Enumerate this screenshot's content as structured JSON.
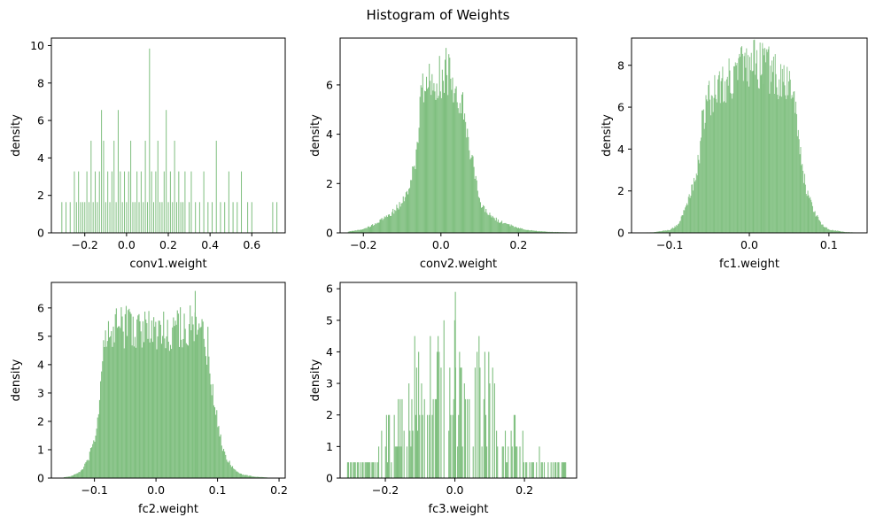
{
  "figure": {
    "title": "Histogram of Weights"
  },
  "colors": {
    "bar": "#7fbf7f",
    "axis": "#000000",
    "background": "#ffffff"
  },
  "chart_data": [
    {
      "type": "bar",
      "panel": "conv1.weight",
      "xlabel": "conv1.weight",
      "ylabel": "density",
      "xlim": [
        -0.36,
        0.76
      ],
      "ylim": [
        0,
        10.4
      ],
      "xticks": [
        -0.2,
        0.0,
        0.2,
        0.4,
        0.6
      ],
      "xtick_labels": [
        "−0.2",
        "0.0",
        "0.2",
        "0.4",
        "0.6"
      ],
      "yticks": [
        0,
        2,
        4,
        6,
        8,
        10
      ],
      "ytick_labels": [
        "0",
        "2",
        "4",
        "6",
        "8",
        "10"
      ],
      "bins": [
        [
          -0.31,
          1.64
        ],
        [
          -0.29,
          1.64
        ],
        [
          -0.27,
          1.64
        ],
        [
          -0.25,
          3.28
        ],
        [
          -0.24,
          1.64
        ],
        [
          -0.23,
          3.28
        ],
        [
          -0.22,
          1.64
        ],
        [
          -0.21,
          1.64
        ],
        [
          -0.2,
          1.64
        ],
        [
          -0.19,
          3.28
        ],
        [
          -0.18,
          1.64
        ],
        [
          -0.17,
          4.92
        ],
        [
          -0.16,
          1.64
        ],
        [
          -0.15,
          3.28
        ],
        [
          -0.14,
          1.64
        ],
        [
          -0.13,
          3.28
        ],
        [
          -0.12,
          6.56
        ],
        [
          -0.11,
          4.92
        ],
        [
          -0.1,
          1.64
        ],
        [
          -0.09,
          3.28
        ],
        [
          -0.08,
          1.64
        ],
        [
          -0.07,
          3.28
        ],
        [
          -0.06,
          4.92
        ],
        [
          -0.05,
          1.64
        ],
        [
          -0.04,
          6.56
        ],
        [
          -0.03,
          3.28
        ],
        [
          -0.02,
          1.64
        ],
        [
          -0.01,
          3.28
        ],
        [
          0.0,
          1.64
        ],
        [
          0.01,
          3.28
        ],
        [
          0.02,
          4.92
        ],
        [
          0.03,
          1.64
        ],
        [
          0.04,
          1.64
        ],
        [
          0.05,
          3.28
        ],
        [
          0.06,
          1.64
        ],
        [
          0.07,
          3.28
        ],
        [
          0.08,
          1.64
        ],
        [
          0.09,
          4.92
        ],
        [
          0.1,
          1.64
        ],
        [
          0.11,
          9.84
        ],
        [
          0.12,
          3.28
        ],
        [
          0.13,
          1.64
        ],
        [
          0.14,
          3.28
        ],
        [
          0.15,
          4.92
        ],
        [
          0.16,
          1.64
        ],
        [
          0.17,
          1.64
        ],
        [
          0.18,
          3.28
        ],
        [
          0.19,
          6.56
        ],
        [
          0.2,
          1.64
        ],
        [
          0.21,
          3.28
        ],
        [
          0.22,
          1.64
        ],
        [
          0.23,
          4.92
        ],
        [
          0.24,
          1.64
        ],
        [
          0.25,
          3.28
        ],
        [
          0.26,
          1.64
        ],
        [
          0.27,
          1.64
        ],
        [
          0.28,
          3.28
        ],
        [
          0.3,
          1.64
        ],
        [
          0.31,
          3.28
        ],
        [
          0.33,
          1.64
        ],
        [
          0.35,
          1.64
        ],
        [
          0.37,
          3.28
        ],
        [
          0.39,
          1.64
        ],
        [
          0.41,
          1.64
        ],
        [
          0.43,
          4.92
        ],
        [
          0.45,
          1.64
        ],
        [
          0.47,
          1.64
        ],
        [
          0.49,
          3.28
        ],
        [
          0.51,
          1.64
        ],
        [
          0.53,
          1.64
        ],
        [
          0.55,
          3.28
        ],
        [
          0.58,
          1.64
        ],
        [
          0.6,
          1.64
        ],
        [
          0.7,
          1.64
        ],
        [
          0.72,
          1.64
        ]
      ],
      "bin_width": 0.004
    },
    {
      "type": "bar",
      "panel": "conv2.weight",
      "xlabel": "conv2.weight",
      "ylabel": "density",
      "xlim": [
        -0.26,
        0.35
      ],
      "ylim": [
        0,
        7.9
      ],
      "xticks": [
        -0.2,
        0.0,
        0.2
      ],
      "xtick_labels": [
        "−0.2",
        "0.0",
        "0.2"
      ],
      "yticks": [
        0,
        2,
        4,
        6
      ],
      "ytick_labels": [
        "0",
        "2",
        "4",
        "6"
      ],
      "bin_width": 0.0024,
      "density_curve": [
        [
          -0.24,
          0.05
        ],
        [
          -0.22,
          0.1
        ],
        [
          -0.2,
          0.15
        ],
        [
          -0.18,
          0.3
        ],
        [
          -0.16,
          0.45
        ],
        [
          -0.14,
          0.7
        ],
        [
          -0.12,
          0.9
        ],
        [
          -0.1,
          1.3
        ],
        [
          -0.08,
          1.9
        ],
        [
          -0.065,
          3.2
        ],
        [
          -0.05,
          6.0
        ],
        [
          -0.03,
          6.2
        ],
        [
          -0.01,
          6.3
        ],
        [
          0.01,
          6.4
        ],
        [
          0.03,
          6.2
        ],
        [
          0.05,
          5.5
        ],
        [
          0.065,
          4.3
        ],
        [
          0.08,
          3.0
        ],
        [
          0.1,
          1.1
        ],
        [
          0.12,
          0.8
        ],
        [
          0.14,
          0.55
        ],
        [
          0.16,
          0.4
        ],
        [
          0.18,
          0.3
        ],
        [
          0.2,
          0.2
        ],
        [
          0.22,
          0.12
        ],
        [
          0.25,
          0.07
        ],
        [
          0.28,
          0.04
        ],
        [
          0.33,
          0.02
        ]
      ],
      "peak": [
        0.012,
        7.5
      ]
    },
    {
      "type": "bar",
      "panel": "fc1.weight",
      "xlabel": "fc1.weight",
      "ylabel": "density",
      "xlim": [
        -0.148,
        0.148
      ],
      "ylim": [
        0,
        9.3
      ],
      "xticks": [
        -0.1,
        0.0,
        0.1
      ],
      "xtick_labels": [
        "−0.1",
        "0.0",
        "0.1"
      ],
      "yticks": [
        0,
        2,
        4,
        6,
        8
      ],
      "ytick_labels": [
        "0",
        "2",
        "4",
        "6",
        "8"
      ],
      "bin_width": 0.001,
      "density_curve": [
        [
          -0.14,
          0.01
        ],
        [
          -0.12,
          0.03
        ],
        [
          -0.1,
          0.15
        ],
        [
          -0.09,
          0.4
        ],
        [
          -0.08,
          1.2
        ],
        [
          -0.07,
          2.5
        ],
        [
          -0.063,
          3.6
        ],
        [
          -0.06,
          5.5
        ],
        [
          -0.05,
          6.5
        ],
        [
          -0.03,
          7.3
        ],
        [
          -0.01,
          7.8
        ],
        [
          0.01,
          8.1
        ],
        [
          0.03,
          7.6
        ],
        [
          0.05,
          6.9
        ],
        [
          0.058,
          6.4
        ],
        [
          0.062,
          4.2
        ],
        [
          0.07,
          2.3
        ],
        [
          0.08,
          1.1
        ],
        [
          0.09,
          0.4
        ],
        [
          0.1,
          0.15
        ],
        [
          0.12,
          0.04
        ],
        [
          0.14,
          0.01
        ]
      ],
      "peak": [
        0.017,
        8.8
      ]
    },
    {
      "type": "bar",
      "panel": "fc2.weight",
      "xlabel": "fc2.weight",
      "ylabel": "density",
      "xlim": [
        -0.17,
        0.21
      ],
      "ylim": [
        0,
        6.9
      ],
      "xticks": [
        -0.1,
        0.0,
        0.1,
        0.2
      ],
      "xtick_labels": [
        "−0.1",
        "0.0",
        "0.1",
        "0.2"
      ],
      "yticks": [
        0,
        1,
        2,
        3,
        4,
        5,
        6
      ],
      "ytick_labels": [
        "0",
        "1",
        "2",
        "3",
        "4",
        "5",
        "6"
      ],
      "bin_width": 0.0016,
      "density_curve": [
        [
          -0.15,
          0.03
        ],
        [
          -0.14,
          0.06
        ],
        [
          -0.13,
          0.15
        ],
        [
          -0.12,
          0.3
        ],
        [
          -0.11,
          0.7
        ],
        [
          -0.1,
          1.4
        ],
        [
          -0.093,
          2.5
        ],
        [
          -0.09,
          4.3
        ],
        [
          -0.07,
          5.2
        ],
        [
          -0.05,
          5.4
        ],
        [
          -0.03,
          5.3
        ],
        [
          -0.01,
          5.2
        ],
        [
          0.01,
          5.2
        ],
        [
          0.03,
          5.3
        ],
        [
          0.05,
          5.4
        ],
        [
          0.07,
          5.1
        ],
        [
          0.085,
          4.6
        ],
        [
          0.09,
          3.3
        ],
        [
          0.1,
          1.8
        ],
        [
          0.11,
          0.9
        ],
        [
          0.12,
          0.5
        ],
        [
          0.13,
          0.25
        ],
        [
          0.14,
          0.12
        ],
        [
          0.16,
          0.05
        ],
        [
          0.18,
          0.02
        ]
      ],
      "peak": [
        0.063,
        6.6
      ]
    },
    {
      "type": "bar",
      "panel": "fc3.weight",
      "xlabel": "fc3.weight",
      "ylabel": "density",
      "xlim": [
        -0.33,
        0.35
      ],
      "ylim": [
        0,
        6.2
      ],
      "xticks": [
        -0.2,
        0.0,
        0.2
      ],
      "xtick_labels": [
        "−0.2",
        "0.0",
        "0.2"
      ],
      "yticks": [
        0,
        1,
        2,
        3,
        4,
        5,
        6
      ],
      "ytick_labels": [
        "0",
        "1",
        "2",
        "3",
        "4",
        "5",
        "6"
      ],
      "bin_width": 0.0028,
      "density_curve": [
        [
          -0.31,
          0.2
        ],
        [
          -0.26,
          0.3
        ],
        [
          -0.22,
          0.6
        ],
        [
          -0.2,
          1.0
        ],
        [
          -0.18,
          1.3
        ],
        [
          -0.15,
          2.0
        ],
        [
          -0.12,
          2.2
        ],
        [
          -0.09,
          2.4
        ],
        [
          -0.06,
          2.3
        ],
        [
          -0.03,
          2.6
        ],
        [
          0.0,
          2.6
        ],
        [
          0.03,
          2.3
        ],
        [
          0.06,
          2.4
        ],
        [
          0.09,
          2.2
        ],
        [
          0.12,
          1.8
        ],
        [
          0.15,
          1.3
        ],
        [
          0.18,
          0.9
        ],
        [
          0.21,
          0.6
        ],
        [
          0.24,
          0.4
        ],
        [
          0.27,
          0.25
        ],
        [
          0.3,
          0.15
        ],
        [
          0.32,
          0.1
        ]
      ],
      "peak": [
        0.0,
        5.9
      ]
    }
  ]
}
